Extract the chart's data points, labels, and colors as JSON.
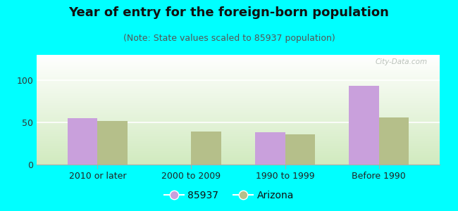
{
  "title": "Year of entry for the foreign-born population",
  "subtitle": "(Note: State values scaled to 85937 population)",
  "categories": [
    "2010 or later",
    "2000 to 2009",
    "1990 to 1999",
    "Before 1990"
  ],
  "values_85937": [
    55,
    0,
    38,
    93
  ],
  "values_arizona": [
    52,
    39,
    36,
    56
  ],
  "color_85937": "#c9a0dc",
  "color_arizona": "#b5bf8a",
  "ylim": [
    0,
    130
  ],
  "yticks": [
    0,
    50,
    100
  ],
  "background_outer": "#00ffff",
  "plot_bg_color": "#eaf2e0",
  "bar_width": 0.32,
  "legend_label_85937": "85937",
  "legend_label_arizona": "Arizona",
  "title_fontsize": 13,
  "subtitle_fontsize": 9,
  "tick_fontsize": 9,
  "legend_fontsize": 10,
  "watermark_text": "City-Data.com",
  "grid_color": "#ffffff",
  "spine_color": "#aaaaaa"
}
